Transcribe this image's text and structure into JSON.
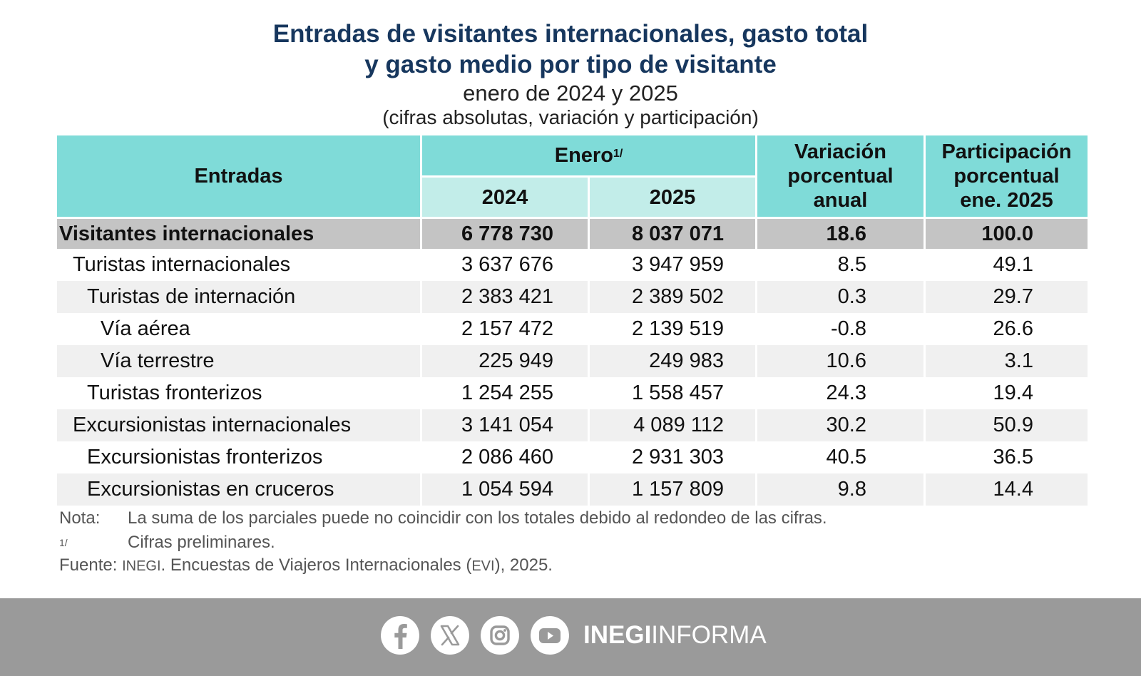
{
  "title": {
    "line1": "Entradas de visitantes internacionales, gasto total",
    "line2": "y gasto medio por tipo de visitante",
    "period": "enero de 2024 y 2025",
    "units": "(cifras absolutas, variación y participación)"
  },
  "table": {
    "header": {
      "entradas": "Entradas",
      "enero": "Enero",
      "enero_note": "1/",
      "year_2024": "2024",
      "year_2025": "2025",
      "variacion": [
        "Variación",
        "porcentual",
        "anual"
      ],
      "participacion": [
        "Participación",
        "porcentual",
        "ene. 2025"
      ]
    },
    "rows": [
      {
        "label": "Visitantes internacionales",
        "v2024": "6 778 730",
        "v2025": "8 037 071",
        "var": "18.6",
        "part": "100.0"
      },
      {
        "label": "Turistas internacionales",
        "v2024": "3 637 676",
        "v2025": "3 947 959",
        "var": "8.5",
        "part": "49.1"
      },
      {
        "label": "Turistas de internación",
        "v2024": "2 383 421",
        "v2025": "2 389 502",
        "var": "0.3",
        "part": "29.7"
      },
      {
        "label": "Vía aérea",
        "v2024": "2 157 472",
        "v2025": "2 139 519",
        "var": "-0.8",
        "part": "26.6"
      },
      {
        "label": "Vía terrestre",
        "v2024": "225 949",
        "v2025": "249 983",
        "var": "10.6",
        "part": "3.1"
      },
      {
        "label": "Turistas fronterizos",
        "v2024": "1 254 255",
        "v2025": "1 558 457",
        "var": "24.3",
        "part": "19.4"
      },
      {
        "label": "Excursionistas internacionales",
        "v2024": "3 141 054",
        "v2025": "4 089 112",
        "var": "30.2",
        "part": "50.9"
      },
      {
        "label": "Excursionistas fronterizos",
        "v2024": "2 086 460",
        "v2025": "2 931 303",
        "var": "40.5",
        "part": "36.5"
      },
      {
        "label": "Excursionistas en cruceros",
        "v2024": "1 054 594",
        "v2025": "1 157 809",
        "var": "9.8",
        "part": "14.4"
      }
    ]
  },
  "notes": {
    "nota_label": "Nota:",
    "nota_text": "La suma de los parciales puede no coincidir con los totales debido al redondeo de las cifras.",
    "prelim_label": "1/",
    "prelim_text": "Cifras preliminares.",
    "fuente_label": "Fuente:",
    "fuente_org": "INEGI",
    "fuente_text1": ". Encuestas de Viajeros Internacionales (",
    "fuente_abbr": "EVI",
    "fuente_text2": "), 2025."
  },
  "footer": {
    "brand_bold": "INEGI",
    "brand_light": "INFORMA",
    "icons": [
      "facebook-icon",
      "x-icon",
      "instagram-icon",
      "youtube-icon"
    ],
    "background": "#9a9a9a"
  },
  "colors": {
    "title": "#17375e",
    "header_main": "#7fdbd8",
    "header_sub": "#c2ede9",
    "total_row": "#c4c4c4",
    "alt_row": "#f0f0f0"
  },
  "chart_data": {
    "type": "table",
    "columns": [
      "Entradas",
      "2024",
      "2025",
      "Variación porcentual anual",
      "Participación porcentual ene. 2025"
    ],
    "rows": [
      [
        "Visitantes internacionales",
        6778730,
        8037071,
        18.6,
        100.0
      ],
      [
        "Turistas internacionales",
        3637676,
        3947959,
        8.5,
        49.1
      ],
      [
        "Turistas de internación",
        2383421,
        2389502,
        0.3,
        29.7
      ],
      [
        "Vía aérea",
        2157472,
        2139519,
        -0.8,
        26.6
      ],
      [
        "Vía terrestre",
        225949,
        249983,
        10.6,
        3.1
      ],
      [
        "Turistas fronterizos",
        1254255,
        1558457,
        24.3,
        19.4
      ],
      [
        "Excursionistas internacionales",
        3141054,
        4089112,
        30.2,
        50.9
      ],
      [
        "Excursionistas fronterizos",
        2086460,
        2931303,
        40.5,
        36.5
      ],
      [
        "Excursionistas en cruceros",
        1054594,
        1157809,
        9.8,
        14.4
      ]
    ]
  }
}
